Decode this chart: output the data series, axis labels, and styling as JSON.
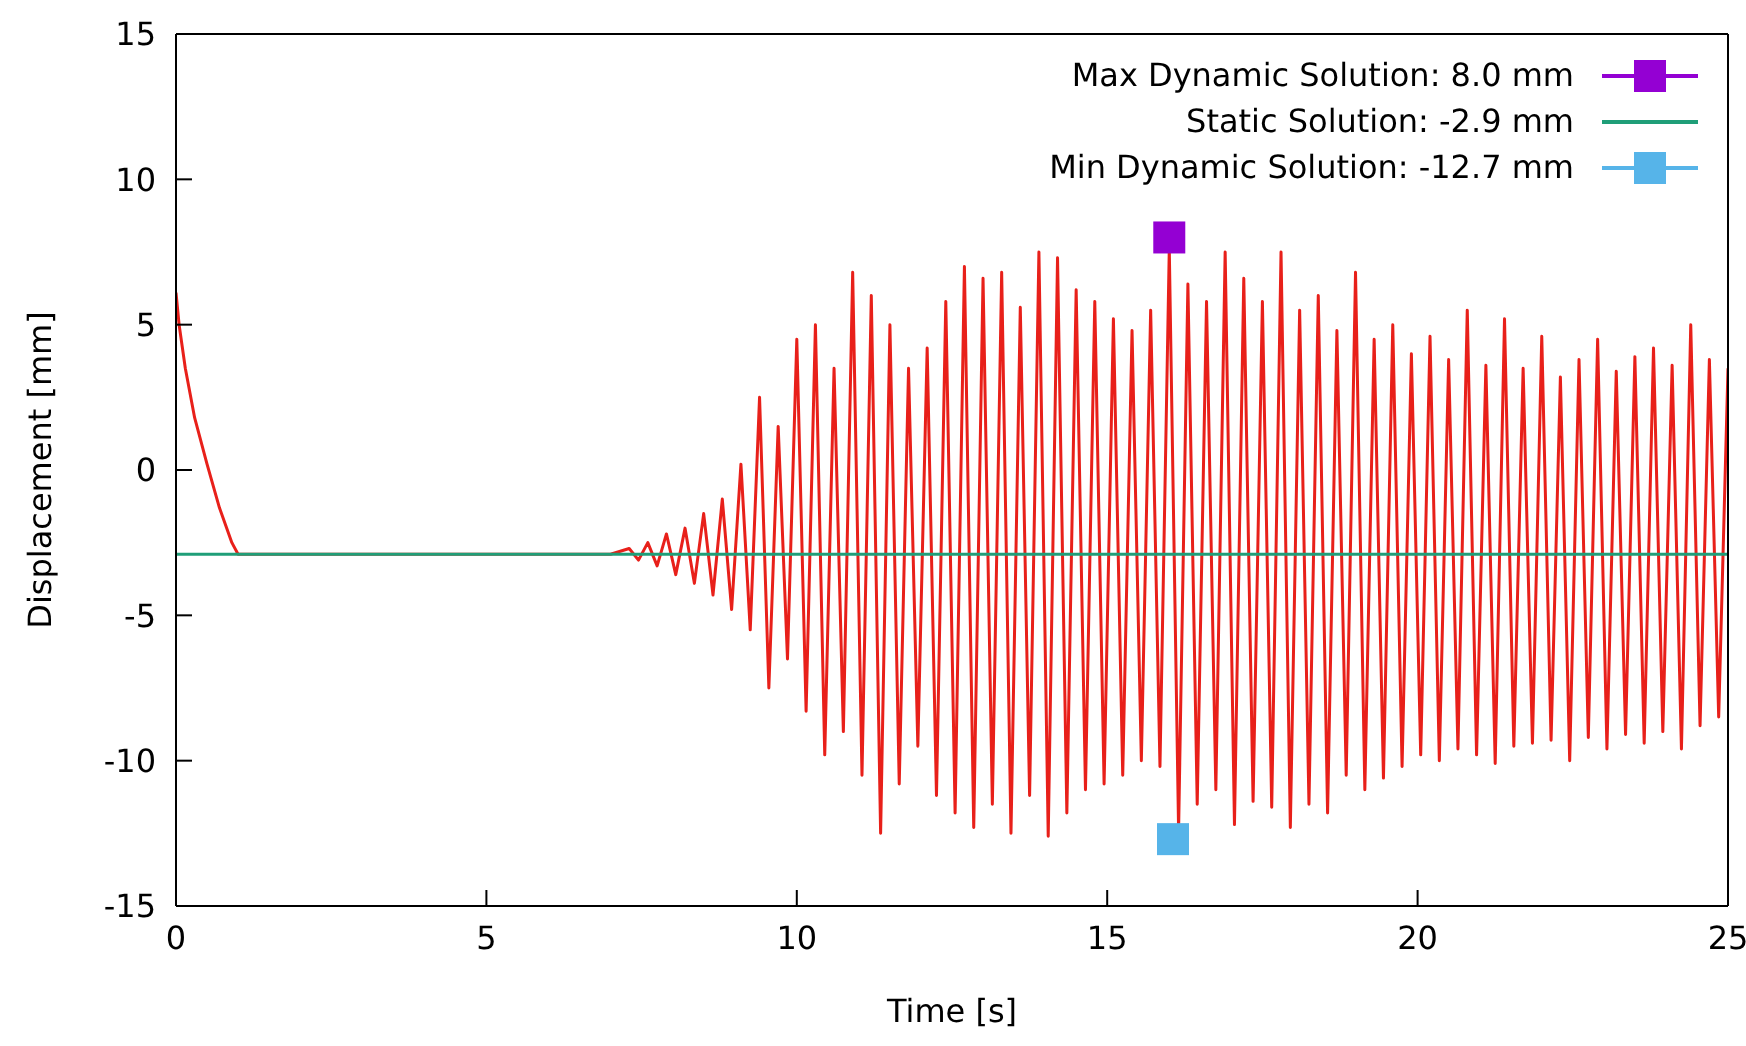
{
  "chart_data": {
    "type": "line",
    "xlabel": "Time [s]",
    "ylabel": "Displacement [mm]",
    "xlim": [
      0,
      25
    ],
    "ylim": [
      -15,
      15
    ],
    "xticks": [
      0,
      5,
      10,
      15,
      20,
      25
    ],
    "yticks": [
      -15,
      -10,
      -5,
      0,
      5,
      10,
      15
    ],
    "legend": "top right",
    "series": [
      {
        "color": "#e8201a",
        "marker": "none",
        "x": [
          0,
          0.05,
          0.15,
          0.3,
          0.5,
          0.7,
          0.9,
          1.0,
          7.0,
          7.3,
          7.45,
          7.6,
          7.75,
          7.9,
          8.05,
          8.2,
          8.35,
          8.5,
          8.65,
          8.8,
          8.95,
          9.1,
          9.25,
          9.4,
          9.55,
          9.7,
          9.85,
          10.0,
          10.15,
          10.3,
          10.45,
          10.6,
          10.75,
          10.9,
          11.05,
          11.2,
          11.35,
          11.5,
          11.65,
          11.8,
          11.95,
          12.1,
          12.25,
          12.4,
          12.55,
          12.7,
          12.85,
          13.0,
          13.15,
          13.3,
          13.45,
          13.6,
          13.75,
          13.9,
          14.05,
          14.2,
          14.35,
          14.5,
          14.65,
          14.8,
          14.95,
          15.1,
          15.25,
          15.4,
          15.55,
          15.7,
          15.85,
          16.0,
          16.15,
          16.3,
          16.45,
          16.6,
          16.75,
          16.9,
          17.05,
          17.2,
          17.35,
          17.5,
          17.65,
          17.8,
          17.95,
          18.1,
          18.25,
          18.4,
          18.55,
          18.7,
          18.85,
          19.0,
          19.15,
          19.3,
          19.45,
          19.6,
          19.75,
          19.9,
          20.05,
          20.2,
          20.35,
          20.5,
          20.65,
          20.8,
          20.95,
          21.1,
          21.25,
          21.4,
          21.55,
          21.7,
          21.85,
          22.0,
          22.15,
          22.3,
          22.45,
          22.6,
          22.75,
          22.9,
          23.05,
          23.2,
          23.35,
          23.5,
          23.65,
          23.8,
          23.95,
          24.1,
          24.25,
          24.4,
          24.55,
          24.7,
          24.85,
          25.0
        ],
        "values": [
          6.1,
          5.0,
          3.5,
          1.8,
          0.2,
          -1.3,
          -2.5,
          -2.9,
          -2.9,
          -2.7,
          -3.1,
          -2.5,
          -3.3,
          -2.2,
          -3.6,
          -2.0,
          -3.9,
          -1.5,
          -4.3,
          -1.0,
          -4.8,
          0.2,
          -5.5,
          2.5,
          -7.5,
          1.5,
          -6.5,
          4.5,
          -8.3,
          5.0,
          -9.8,
          3.5,
          -9.0,
          6.8,
          -10.5,
          6.0,
          -12.5,
          5.0,
          -10.8,
          3.5,
          -9.5,
          4.2,
          -11.2,
          5.8,
          -11.8,
          7.0,
          -12.3,
          6.6,
          -11.5,
          6.8,
          -12.5,
          5.6,
          -11.2,
          7.5,
          -12.6,
          7.3,
          -11.8,
          6.2,
          -11.0,
          5.8,
          -10.8,
          5.2,
          -10.5,
          4.8,
          -10.0,
          5.5,
          -10.2,
          7.6,
          -12.4,
          6.4,
          -11.5,
          5.8,
          -11.0,
          7.5,
          -12.2,
          6.6,
          -11.4,
          5.8,
          -11.6,
          7.5,
          -12.3,
          5.5,
          -11.5,
          6.0,
          -11.8,
          4.8,
          -10.5,
          6.8,
          -11.0,
          4.5,
          -10.6,
          5.0,
          -10.2,
          4.0,
          -9.8,
          4.6,
          -10.0,
          3.8,
          -9.6,
          5.5,
          -9.8,
          3.6,
          -10.1,
          5.2,
          -9.5,
          3.5,
          -9.4,
          4.6,
          -9.3,
          3.2,
          -10.0,
          3.8,
          -9.2,
          4.5,
          -9.6,
          3.4,
          -9.1,
          3.9,
          -9.4,
          4.2,
          -9.0,
          3.6,
          -9.6,
          5.0,
          -8.8,
          3.8,
          -8.5,
          3.5
        ]
      },
      {
        "type": "scatter",
        "name": "Max Dynamic Solution: 8.0 mm",
        "color": "#9400d3",
        "marker": "square",
        "x": [
          16.0
        ],
        "values": [
          8.0
        ]
      },
      {
        "name": "Static Solution: -2.9 mm",
        "color": "#1f9e78",
        "marker": "none",
        "x": [
          0,
          25
        ],
        "values": [
          -2.9,
          -2.9
        ]
      },
      {
        "type": "scatter",
        "name": "Min Dynamic Solution: -12.7 mm",
        "color": "#56b4e9",
        "marker": "square",
        "x": [
          16.06
        ],
        "values": [
          -12.7
        ]
      }
    ]
  }
}
